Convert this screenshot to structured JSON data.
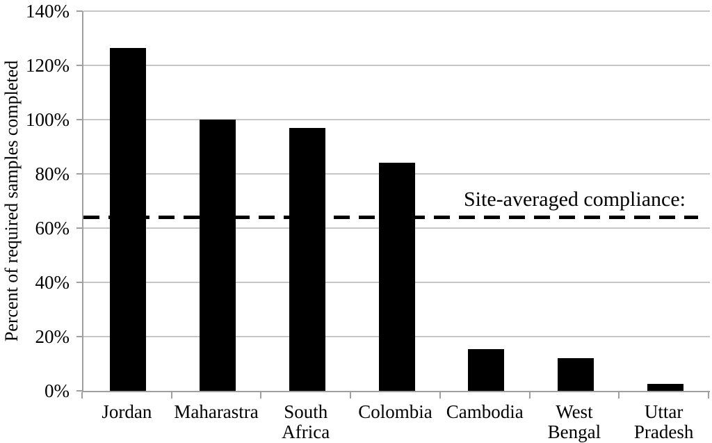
{
  "chart_data": {
    "type": "bar",
    "title": "",
    "ylabel": "Percent of required samples completed",
    "xlabel": "",
    "categories": [
      "Jordan",
      "Maharastra",
      "South\nAfrica",
      "Colombia",
      "Cambodia",
      "West\nBengal",
      "Uttar\nPradesh"
    ],
    "values": [
      126.5,
      100,
      96.8,
      84,
      15.5,
      12,
      2.5
    ],
    "ylim": [
      0,
      140
    ],
    "ytick_step": 20,
    "ytick_labels": [
      "0%",
      "20%",
      "40%",
      "60%",
      "80%",
      "100%",
      "120%",
      "140%"
    ],
    "grid": true,
    "legend": "none",
    "bar_color": "#000000",
    "gridline_color": "#c6c6c6",
    "axis_color": "#9f9f9f",
    "reference_line": {
      "value": 64,
      "style": "dashed",
      "color": "#000000",
      "label": "Site-averaged compliance:"
    }
  }
}
